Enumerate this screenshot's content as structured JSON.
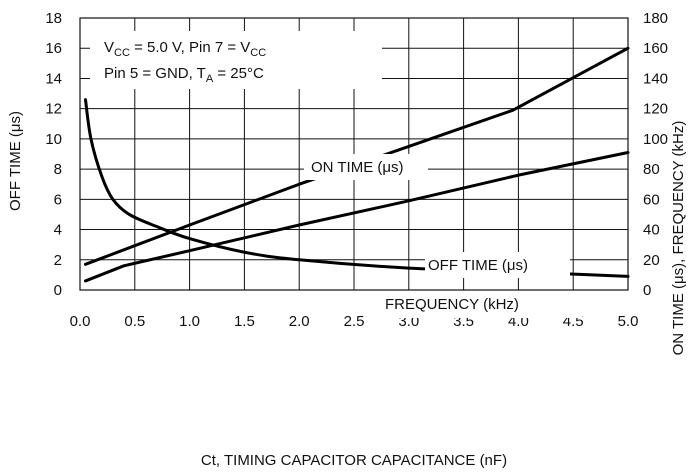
{
  "chart_data": {
    "type": "line",
    "xlabel": "Ct, TIMING CAPACITOR CAPACITANCE (nF)",
    "ylabel_left": "OFF TIME (μs)",
    "ylabel_right": "ON TIME (μs), FREQUENCY (kHz)",
    "xlim": [
      0,
      5
    ],
    "ylim_left": [
      0,
      18
    ],
    "ylim_right": [
      0,
      180
    ],
    "x_ticks": [
      "0.0",
      "0.5",
      "1.0",
      "1.5",
      "2.0",
      "2.5",
      "3.0",
      "3.5",
      "4.0",
      "4.5",
      "5.0"
    ],
    "y_ticks_left": [
      "0",
      "2",
      "4",
      "6",
      "8",
      "10",
      "12",
      "14",
      "16",
      "18"
    ],
    "y_ticks_right": [
      "0",
      "20",
      "40",
      "60",
      "80",
      "100",
      "120",
      "140",
      "160",
      "180"
    ],
    "grid": true,
    "conditions_line1": {
      "a": "V",
      "a_sub": "CC",
      "b": " = 5.0 V, Pin 7 = V",
      "b_sub": "CC"
    },
    "conditions_line2": {
      "a": "Pin 5 = GND, T",
      "a_sub": "A",
      "b": " = 25°C"
    },
    "series": [
      {
        "name": "ON TIME (μs)",
        "axis": "right",
        "x": [
          0.05,
          1.0,
          2.0,
          3.0,
          3.95,
          5.0
        ],
        "y": [
          17,
          43,
          70,
          95,
          119,
          160
        ]
      },
      {
        "name": "OFF TIME (μs)",
        "axis": "left",
        "x": [
          0.05,
          0.4,
          1.0,
          2.0,
          3.0,
          4.0,
          5.0
        ],
        "y": [
          0.6,
          1.6,
          2.6,
          4.3,
          5.9,
          7.6,
          9.1
        ]
      },
      {
        "name": "FREQUENCY (kHz)",
        "axis": "right",
        "x": [
          0.05,
          0.1,
          0.2,
          0.3,
          0.45,
          0.7,
          1.0,
          1.5,
          2.0,
          3.0,
          4.0,
          5.0
        ],
        "y": [
          126,
          100,
          75,
          60,
          50,
          42,
          34,
          25,
          20,
          14.5,
          12,
          9
        ]
      }
    ]
  }
}
